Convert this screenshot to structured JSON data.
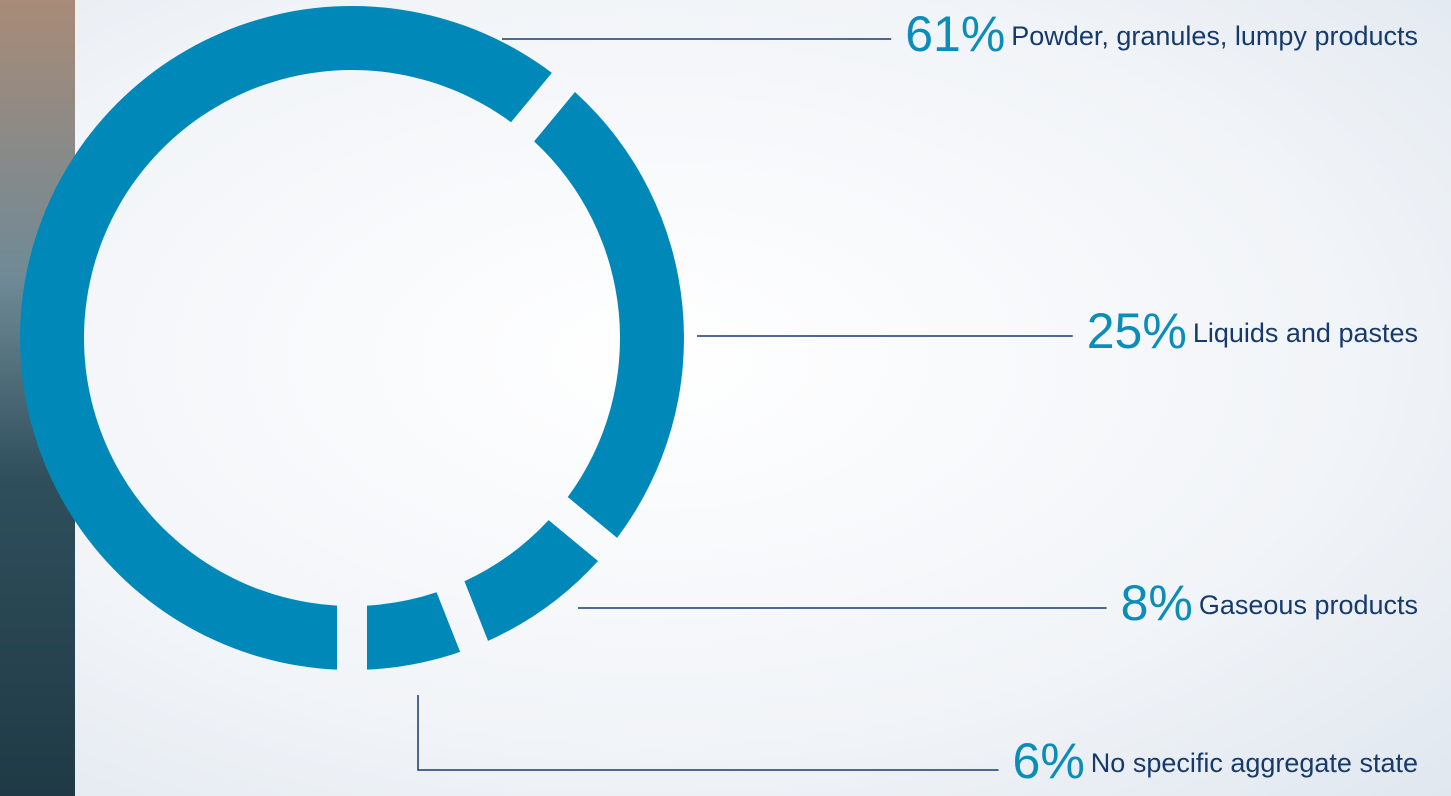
{
  "chart_data": {
    "type": "donut",
    "categories": [
      "Powder, granules, lumpy products",
      "Liquids and pastes",
      "Gaseous products",
      "No specific aggregate state"
    ],
    "values": [
      61,
      25,
      8,
      6
    ],
    "value_labels": [
      "61%",
      "25%",
      "8%",
      "6%"
    ],
    "color": "#0089b8"
  }
}
